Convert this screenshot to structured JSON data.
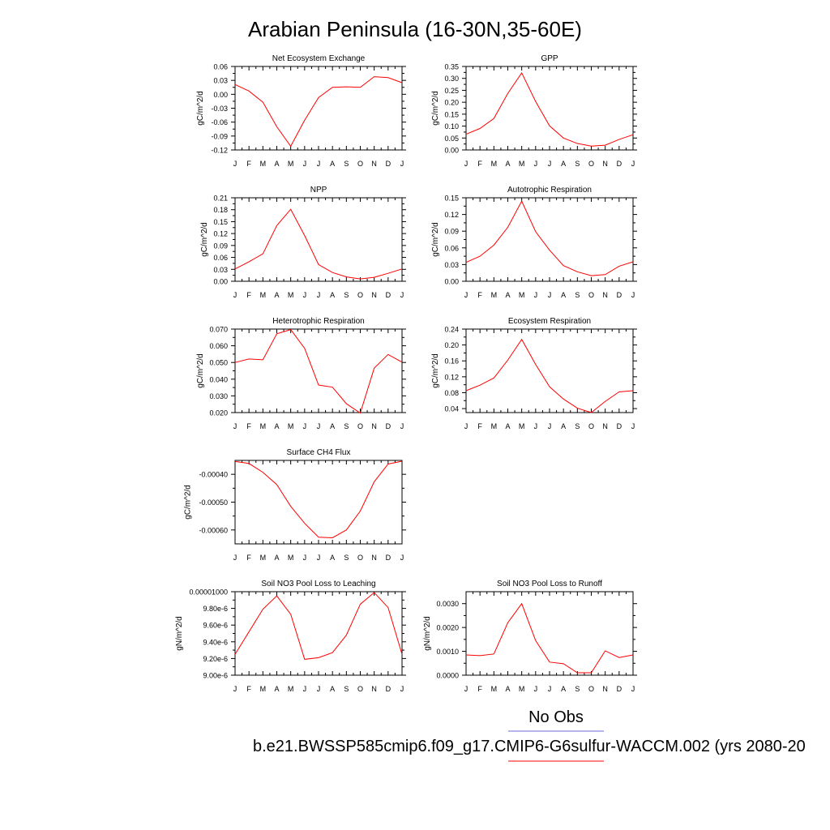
{
  "title": "Arabian Peninsula (16-30N,35-60E)",
  "legend": {
    "obs_label": "No Obs",
    "obs_color": "#6b6bdc",
    "model_label": "b.e21.BWSSP585cmip6.f09_g17.CMIP6-G6sulfur-WACCM.002 (yrs 2080-20",
    "model_color": "#ff0000"
  },
  "chart_data": [
    {
      "type": "line",
      "title": "Net Ecosystem Exchange",
      "ylabel": "gC/m^2/d",
      "x": [
        "J",
        "F",
        "M",
        "A",
        "M",
        "J",
        "J",
        "A",
        "S",
        "O",
        "N",
        "D",
        "J"
      ],
      "ylim": [
        -0.12,
        0.06
      ],
      "yticks": [
        "0.06",
        "0.03",
        "0.00",
        "-0.03",
        "-0.06",
        "-0.09",
        "-0.12"
      ],
      "series": [
        {
          "color": "#ff0000",
          "values": [
            0.021,
            0.007,
            -0.017,
            -0.07,
            -0.112,
            -0.056,
            -0.007,
            0.015,
            0.016,
            0.015,
            0.038,
            0.036,
            0.025
          ]
        }
      ]
    },
    {
      "type": "line",
      "title": "GPP",
      "ylabel": "gC/m^2/d",
      "x": [
        "J",
        "F",
        "M",
        "A",
        "M",
        "J",
        "J",
        "A",
        "S",
        "O",
        "N",
        "D",
        "J"
      ],
      "ylim": [
        0.0,
        0.35
      ],
      "yticks": [
        "0.35",
        "0.30",
        "0.25",
        "0.20",
        "0.15",
        "0.10",
        "0.05",
        "0.00"
      ],
      "series": [
        {
          "color": "#ff0000",
          "values": [
            0.066,
            0.09,
            0.132,
            0.237,
            0.323,
            0.203,
            0.101,
            0.05,
            0.027,
            0.016,
            0.02,
            0.044,
            0.064
          ]
        }
      ]
    },
    {
      "type": "line",
      "title": "NPP",
      "ylabel": "gC/m^2/d",
      "x": [
        "J",
        "F",
        "M",
        "A",
        "M",
        "J",
        "J",
        "A",
        "S",
        "O",
        "N",
        "D",
        "J"
      ],
      "ylim": [
        0.0,
        0.21
      ],
      "yticks": [
        "0.21",
        "0.18",
        "0.15",
        "0.12",
        "0.09",
        "0.06",
        "0.03",
        "0.00"
      ],
      "series": [
        {
          "color": "#ff0000",
          "values": [
            0.031,
            0.049,
            0.069,
            0.14,
            0.181,
            0.115,
            0.042,
            0.022,
            0.011,
            0.006,
            0.01,
            0.02,
            0.031
          ]
        }
      ]
    },
    {
      "type": "line",
      "title": "Autotrophic Respiration",
      "ylabel": "gC/m^2/d",
      "x": [
        "J",
        "F",
        "M",
        "A",
        "M",
        "J",
        "J",
        "A",
        "S",
        "O",
        "N",
        "D",
        "J"
      ],
      "ylim": [
        0.0,
        0.15
      ],
      "yticks": [
        "0.15",
        "0.12",
        "0.09",
        "0.06",
        "0.03",
        "0.00"
      ],
      "series": [
        {
          "color": "#ff0000",
          "values": [
            0.034,
            0.045,
            0.065,
            0.097,
            0.144,
            0.089,
            0.056,
            0.028,
            0.017,
            0.01,
            0.012,
            0.027,
            0.035
          ]
        }
      ]
    },
    {
      "type": "line",
      "title": "Heterotrophic Respiration",
      "ylabel": "gC/m^2/d",
      "x": [
        "J",
        "F",
        "M",
        "A",
        "M",
        "J",
        "J",
        "A",
        "S",
        "O",
        "N",
        "D",
        "J"
      ],
      "ylim": [
        0.02,
        0.07
      ],
      "yticks": [
        "0.070",
        "0.060",
        "0.050",
        "0.040",
        "0.030",
        "0.020"
      ],
      "series": [
        {
          "color": "#ff0000",
          "values": [
            0.05,
            0.0521,
            0.0516,
            0.0672,
            0.0697,
            0.0585,
            0.0365,
            0.0352,
            0.0253,
            0.0197,
            0.0466,
            0.0548,
            0.0502
          ]
        }
      ]
    },
    {
      "type": "line",
      "title": "Ecosystem Respiration",
      "ylabel": "gC/m^2/d",
      "x": [
        "J",
        "F",
        "M",
        "A",
        "M",
        "J",
        "J",
        "A",
        "S",
        "O",
        "N",
        "D",
        "J"
      ],
      "ylim": [
        0.03,
        0.24
      ],
      "yticks": [
        "0.24",
        "0.20",
        "0.16",
        "0.12",
        "0.08",
        "0.04"
      ],
      "series": [
        {
          "color": "#ff0000",
          "values": [
            0.085,
            0.099,
            0.117,
            0.162,
            0.214,
            0.151,
            0.095,
            0.064,
            0.041,
            0.03,
            0.058,
            0.082,
            0.085
          ]
        }
      ]
    },
    {
      "type": "line",
      "title": "Surface CH4 Flux",
      "ylabel": "gC/m^2/d",
      "x": [
        "J",
        "F",
        "M",
        "A",
        "M",
        "J",
        "J",
        "A",
        "S",
        "O",
        "N",
        "D",
        "J"
      ],
      "ylim": [
        -0.00065,
        -0.00035
      ],
      "yticks": [
        "-0.00040",
        "-0.00050",
        "-0.00060"
      ],
      "ytickvalues": [
        -0.0004,
        -0.0005,
        -0.0006
      ],
      "series": [
        {
          "color": "#ff0000",
          "values": [
            -0.000354,
            -0.000361,
            -0.000393,
            -0.000437,
            -0.000515,
            -0.000576,
            -0.000626,
            -0.000628,
            -0.0006,
            -0.000532,
            -0.000427,
            -0.000363,
            -0.000353
          ]
        }
      ]
    },
    {
      "type": "line",
      "title": "Soil NO3 Pool Loss to Leaching",
      "ylabel": "gN/m^2/d",
      "x": [
        "J",
        "F",
        "M",
        "A",
        "M",
        "J",
        "J",
        "A",
        "S",
        "O",
        "N",
        "D",
        "J"
      ],
      "ylim": [
        9e-06,
        1e-05
      ],
      "yticks": [
        "0.00001000",
        "9.80e-6",
        "9.60e-6",
        "9.40e-6",
        "9.20e-6",
        "9.00e-6"
      ],
      "series": [
        {
          "color": "#ff0000",
          "values": [
            9.25e-06,
            9.52e-06,
            9.79e-06,
            9.95e-06,
            9.73e-06,
            9.19e-06,
            9.21e-06,
            9.27e-06,
            9.48e-06,
            9.85e-06,
            9.99e-06,
            9.81e-06,
            9.25e-06
          ]
        }
      ]
    },
    {
      "type": "line",
      "title": "Soil NO3 Pool Loss to Runoff",
      "ylabel": "gN/m^2/d",
      "x": [
        "J",
        "F",
        "M",
        "A",
        "M",
        "J",
        "J",
        "A",
        "S",
        "O",
        "N",
        "D",
        "J"
      ],
      "ylim": [
        0.0,
        0.0035
      ],
      "yticks": [
        "0.0030",
        "0.0020",
        "0.0010",
        "0.0000"
      ],
      "ytickvalues": [
        0.003,
        0.002,
        0.001,
        0.0
      ],
      "series": [
        {
          "color": "#ff0000",
          "values": [
            0.00085,
            0.00082,
            0.00089,
            0.0022,
            0.003,
            0.00145,
            0.00055,
            0.00048,
            0.0001,
            0.0001,
            0.00102,
            0.00074,
            0.00085
          ]
        }
      ]
    }
  ]
}
